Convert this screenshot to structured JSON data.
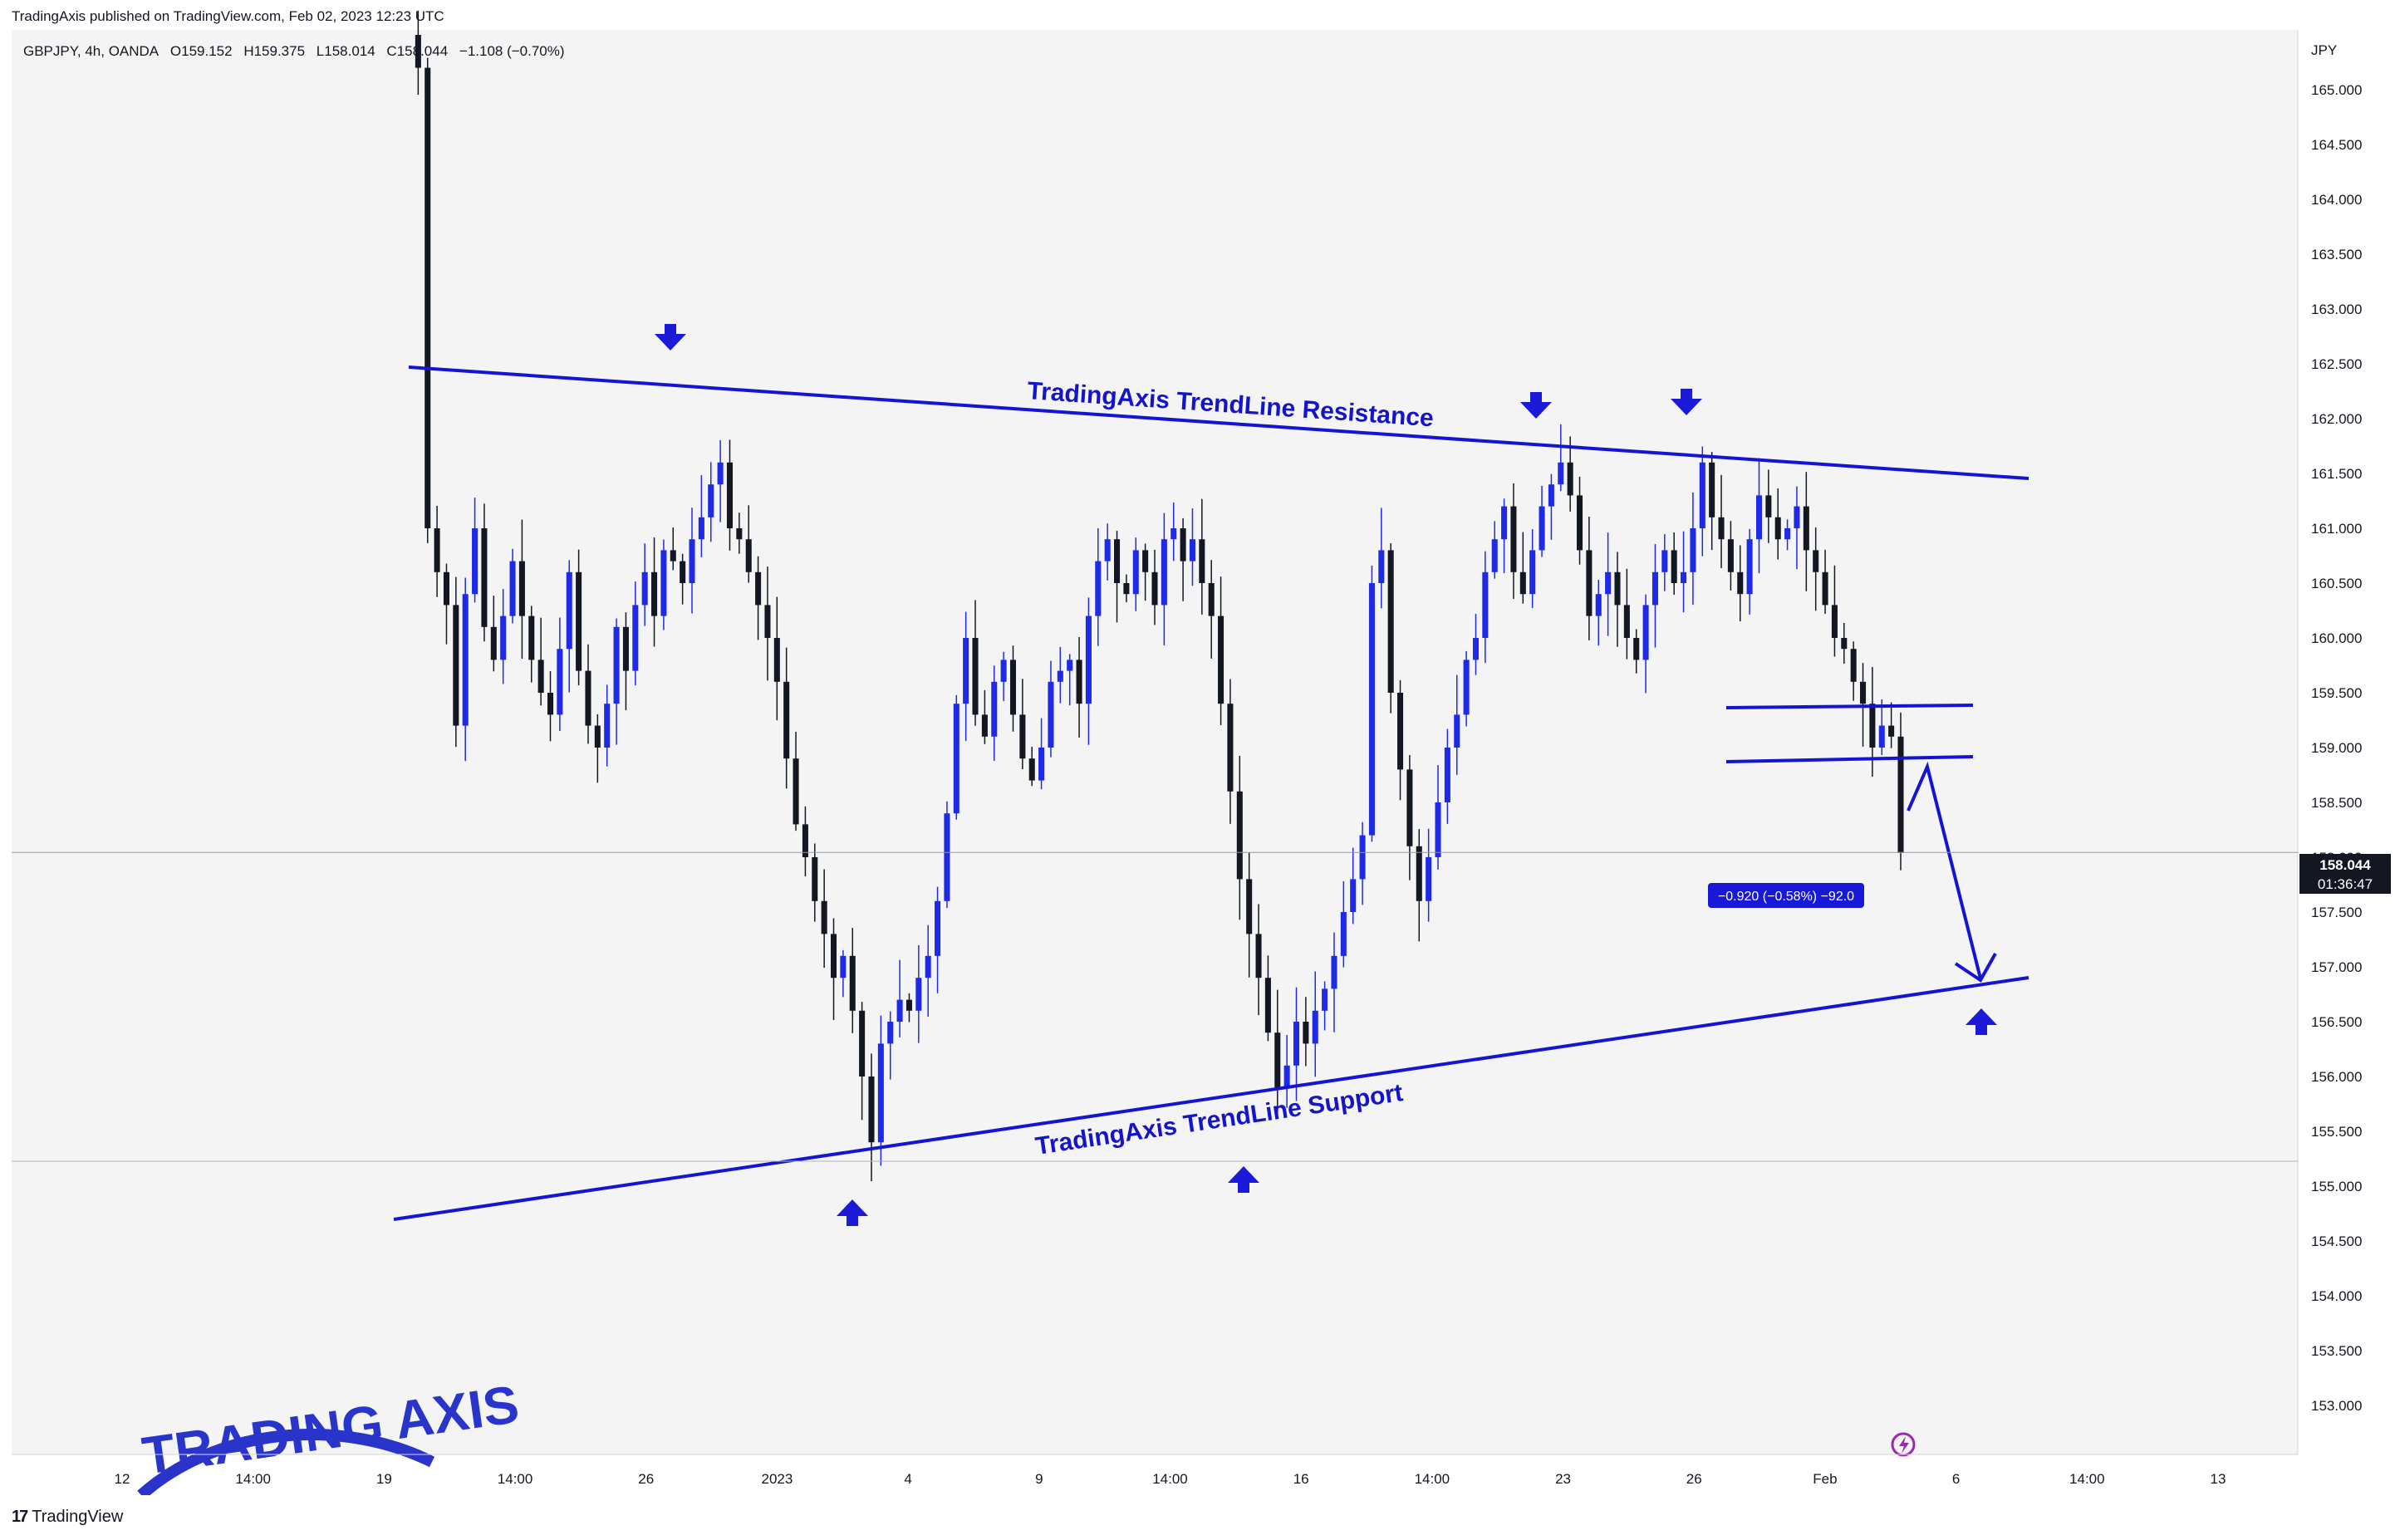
{
  "header": {
    "published_note": "TradingAxis published on TradingView.com, Feb 02, 2023 12:23 UTC"
  },
  "symbol_info": {
    "symbol": "GBPJPY, 4h, OANDA",
    "open": "O159.152",
    "high": "H159.375",
    "low": "L158.014",
    "close": "C158.044",
    "change": "−1.108 (−0.70%)"
  },
  "price_scale": {
    "currency": "JPY",
    "current_price": "158.044",
    "countdown": "01:36:47"
  },
  "measure_label": "−0.920 (−0.58%) −92.0",
  "annotations": {
    "resistance": "TradingAxis TrendLine Resistance",
    "support": "TradingAxis TrendLine Support"
  },
  "footer": {
    "brand": "TradingView",
    "logo_mark": "17"
  },
  "watermark": {
    "text": "TRADING AXIS"
  },
  "colors": {
    "up_candle": "#1f2ae6",
    "down_candle": "#131722",
    "trendline": "#1414d2",
    "plot_bg": "#f4f4f4",
    "price_tag": "#131722",
    "measure_tag": "#1818d8"
  },
  "chart_data": {
    "type": "candlestick",
    "title": "",
    "ylabel": "JPY",
    "ylim": [
      152.5,
      165.4
    ],
    "y_ticks": [
      "153.000",
      "153.500",
      "154.000",
      "154.500",
      "155.000",
      "155.500",
      "156.000",
      "156.500",
      "157.000",
      "157.500",
      "158.000",
      "158.500",
      "159.000",
      "159.500",
      "160.000",
      "160.500",
      "161.000",
      "161.500",
      "162.000",
      "162.500",
      "163.000",
      "163.500",
      "164.000",
      "164.500",
      "165.000"
    ],
    "x_ticks": [
      "12",
      "14:00",
      "19",
      "14:00",
      "26",
      "2023",
      "4",
      "9",
      "14:00",
      "16",
      "14:00",
      "23",
      "26",
      "Feb",
      "6",
      "14:00",
      "13"
    ],
    "grid": false,
    "close_path": [
      165.5,
      165.2,
      161.0,
      160.6,
      160.3,
      159.2,
      160.4,
      161.0,
      160.1,
      159.8,
      160.2,
      160.7,
      160.2,
      159.8,
      159.5,
      159.3,
      159.9,
      160.6,
      159.7,
      159.2,
      159.0,
      159.4,
      160.1,
      159.7,
      160.3,
      160.6,
      160.2,
      160.8,
      160.7,
      160.5,
      160.9,
      161.1,
      161.4,
      161.6,
      161.0,
      160.9,
      160.6,
      160.3,
      160.0,
      159.6,
      158.9,
      158.3,
      158.0,
      157.6,
      157.3,
      156.9,
      157.1,
      156.6,
      156.0,
      155.4,
      156.3,
      156.5,
      156.7,
      156.6,
      156.9,
      157.1,
      157.6,
      158.4,
      159.4,
      160.0,
      159.3,
      159.1,
      159.6,
      159.8,
      159.3,
      158.9,
      158.7,
      159.0,
      159.6,
      159.7,
      159.8,
      159.4,
      160.2,
      160.7,
      160.9,
      160.5,
      160.4,
      160.8,
      160.6,
      160.3,
      160.9,
      161.0,
      160.7,
      160.9,
      160.5,
      160.2,
      159.4,
      158.6,
      157.8,
      157.3,
      156.9,
      156.4,
      155.9,
      156.1,
      156.5,
      156.3,
      156.6,
      156.8,
      157.1,
      157.5,
      157.8,
      158.2,
      160.5,
      160.8,
      159.5,
      158.8,
      158.1,
      157.6,
      158.0,
      158.5,
      159.0,
      159.3,
      159.8,
      160.0,
      160.6,
      160.9,
      161.2,
      160.6,
      160.4,
      160.8,
      161.2,
      161.4,
      161.6,
      161.3,
      160.8,
      160.2,
      160.4,
      160.6,
      160.3,
      160.0,
      159.8,
      160.3,
      160.6,
      160.8,
      160.5,
      160.6,
      161.0,
      161.6,
      161.1,
      160.9,
      160.6,
      160.4,
      160.9,
      161.3,
      161.1,
      160.9,
      161.0,
      161.2,
      160.8,
      160.6,
      160.3,
      160.0,
      159.9,
      159.6,
      159.4,
      159.0,
      159.2,
      159.1,
      158.04
    ]
  }
}
